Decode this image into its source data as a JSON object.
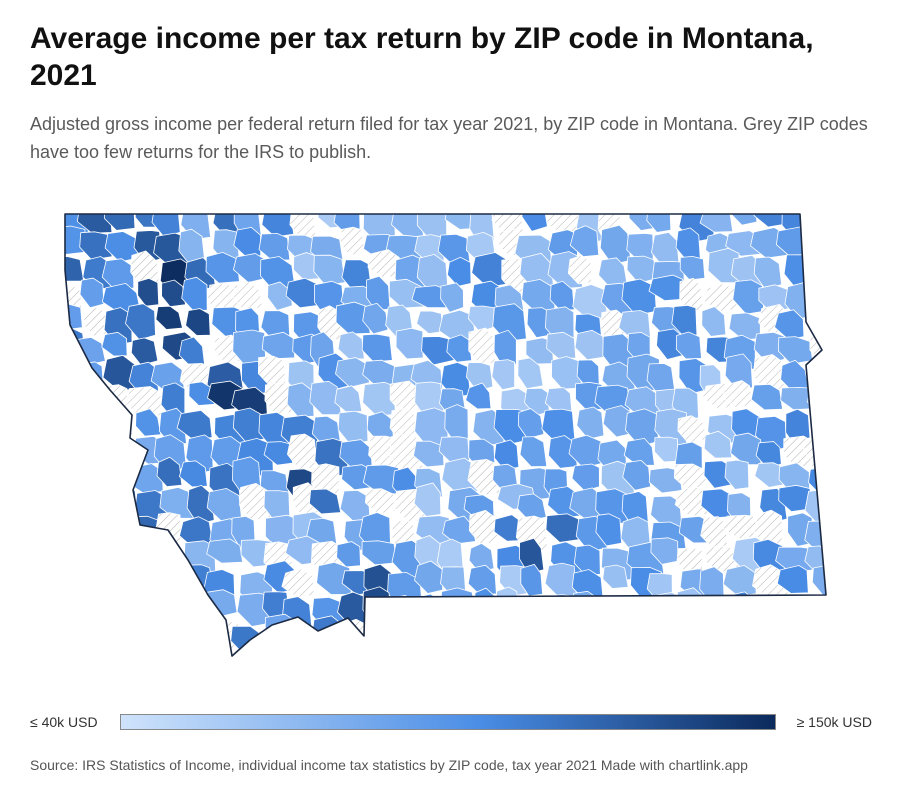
{
  "title": "Average income per tax return by ZIP code in Montana, 2021",
  "subtitle": "Adjusted gross income per federal return filed for tax year 2021, by ZIP code in Montana. Grey ZIP codes have too few returns for the IRS to publish.",
  "legend": {
    "min_label": "≤ 40k USD",
    "max_label": "≥ 150k USD",
    "color_low": "#cfe3fb",
    "color_mid": "#4a8de6",
    "color_high": "#0b2a5c"
  },
  "source": "Source: IRS Statistics of Income, individual income tax statistics by ZIP code, tax year 2021 Made with chartlink.app",
  "colors": {
    "border": "#1c2a44",
    "zip_line": "#ffffff",
    "no_data_fill": "#ffffff",
    "no_data_hatch": "#b5b5b5"
  }
}
